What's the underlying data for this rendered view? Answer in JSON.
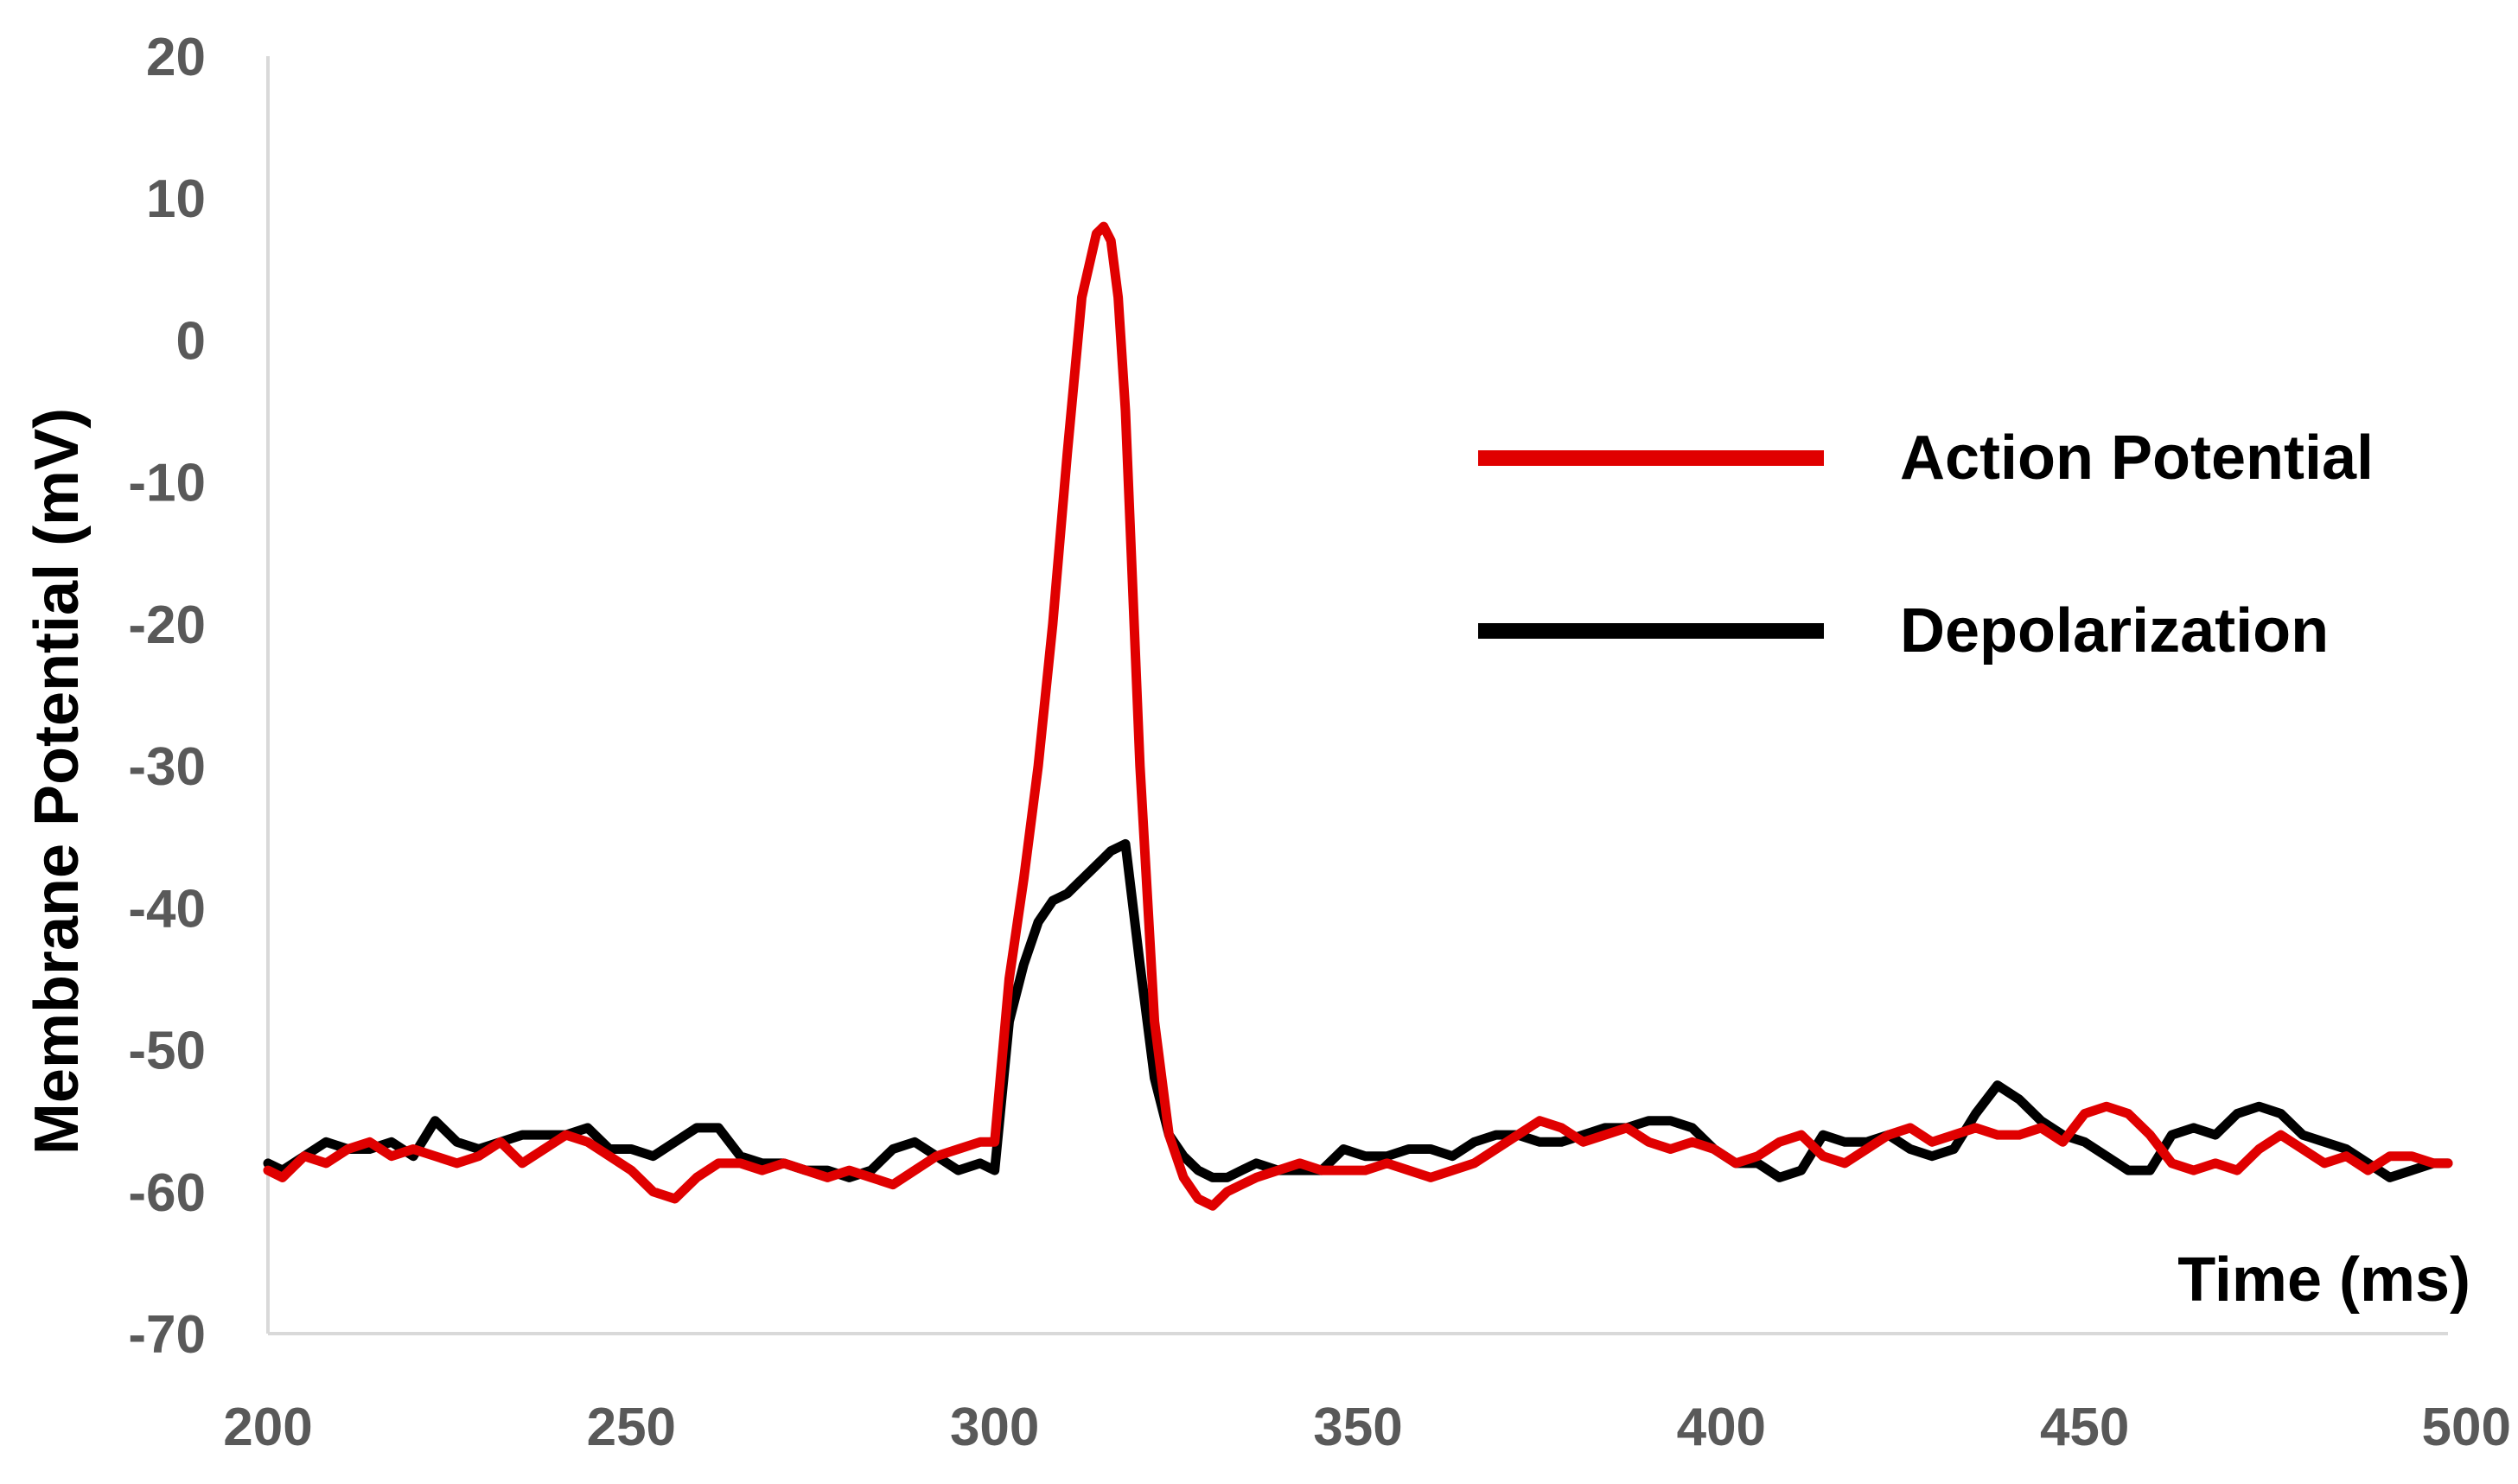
{
  "chart_data": {
    "type": "line",
    "title": "",
    "xlabel": "Time (ms)",
    "ylabel": "Membrane Potential (mV)",
    "xlim": [
      200,
      500
    ],
    "ylim": [
      -70,
      20
    ],
    "xticks": [
      200,
      250,
      300,
      350,
      400,
      450,
      500
    ],
    "yticks": [
      20,
      10,
      0,
      -10,
      -20,
      -30,
      -40,
      -50,
      -60,
      -70
    ],
    "grid": false,
    "legend_position": "right",
    "series": [
      {
        "name": "Action Potential",
        "color": "#e00000",
        "x": [
          200,
          202,
          205,
          208,
          211,
          214,
          217,
          220,
          223,
          226,
          229,
          232,
          235,
          238,
          241,
          244,
          247,
          250,
          253,
          256,
          259,
          262,
          265,
          268,
          271,
          274,
          277,
          280,
          283,
          286,
          289,
          292,
          295,
          298,
          300,
          302,
          304,
          306,
          308,
          310,
          312,
          314,
          315,
          316,
          317,
          318,
          320,
          322,
          324,
          326,
          328,
          330,
          332,
          334,
          336,
          339,
          342,
          345,
          348,
          351,
          354,
          357,
          360,
          363,
          366,
          369,
          372,
          375,
          378,
          381,
          384,
          387,
          390,
          393,
          396,
          399,
          402,
          405,
          408,
          411,
          414,
          417,
          420,
          423,
          426,
          429,
          432,
          435,
          438,
          441,
          444,
          447,
          450,
          453,
          456,
          459,
          462,
          465,
          468,
          471,
          474,
          477,
          480,
          483,
          486,
          489,
          492,
          495,
          498,
          500
        ],
        "y": [
          -58.5,
          -59,
          -57.5,
          -58,
          -57,
          -56.5,
          -57.5,
          -57,
          -57.5,
          -58,
          -57.5,
          -56.5,
          -58,
          -57,
          -56,
          -56.5,
          -57.5,
          -58.5,
          -60,
          -60.5,
          -59,
          -58,
          -58,
          -58.5,
          -58,
          -58.5,
          -59,
          -58.5,
          -59,
          -59.5,
          -58.5,
          -57.5,
          -57,
          -56.5,
          -56.5,
          -45,
          -38,
          -30,
          -20,
          -8,
          3,
          7.5,
          8,
          7,
          3,
          -5,
          -30,
          -48,
          -56,
          -59,
          -60.5,
          -61,
          -60,
          -59.5,
          -59,
          -58.5,
          -58,
          -58.5,
          -58.5,
          -58.5,
          -58,
          -58.5,
          -59,
          -58.5,
          -58,
          -57,
          -56,
          -55,
          -55.5,
          -56.5,
          -56,
          -55.5,
          -56.5,
          -57,
          -56.5,
          -57,
          -58,
          -57.5,
          -56.5,
          -56,
          -57.5,
          -58,
          -57,
          -56,
          -55.5,
          -56.5,
          -56,
          -55.5,
          -56,
          -56,
          -55.5,
          -56.5,
          -54.5,
          -54,
          -54.5,
          -56,
          -58,
          -58.5,
          -58,
          -58.5,
          -57,
          -56,
          -57,
          -58,
          -57.5,
          -58.5,
          -57.5,
          -57.5,
          -58,
          -58
        ]
      },
      {
        "name": "Depolarization",
        "color": "#000000",
        "x": [
          200,
          202,
          205,
          208,
          211,
          214,
          217,
          220,
          223,
          226,
          229,
          232,
          235,
          238,
          241,
          244,
          247,
          250,
          253,
          256,
          259,
          262,
          265,
          268,
          271,
          274,
          277,
          280,
          283,
          286,
          289,
          292,
          295,
          298,
          300,
          302,
          304,
          306,
          308,
          310,
          312,
          314,
          316,
          318,
          320,
          322,
          324,
          326,
          328,
          330,
          332,
          334,
          336,
          339,
          342,
          345,
          348,
          351,
          354,
          357,
          360,
          363,
          366,
          369,
          372,
          375,
          378,
          381,
          384,
          387,
          390,
          393,
          396,
          399,
          402,
          405,
          408,
          411,
          414,
          417,
          420,
          423,
          426,
          429,
          432,
          435,
          438,
          441,
          444,
          447,
          450,
          453,
          456,
          459,
          462,
          465,
          468,
          471,
          474,
          477,
          480,
          483,
          486,
          489,
          492,
          495,
          498,
          500
        ],
        "y": [
          -58,
          -58.5,
          -57.5,
          -56.5,
          -57,
          -57,
          -56.5,
          -57.5,
          -55,
          -56.5,
          -57,
          -56.5,
          -56,
          -56,
          -56,
          -55.5,
          -57,
          -57,
          -57.5,
          -56.5,
          -55.5,
          -55.5,
          -57.5,
          -58,
          -58,
          -58.5,
          -58.5,
          -59,
          -58.5,
          -57,
          -56.5,
          -57.5,
          -58.5,
          -58,
          -58.5,
          -48,
          -44,
          -41,
          -39.5,
          -39,
          -38,
          -37,
          -36,
          -35.5,
          -44,
          -52,
          -56,
          -57.5,
          -58.5,
          -59,
          -59,
          -58.5,
          -58,
          -58.5,
          -58.5,
          -58.5,
          -57,
          -57.5,
          -57.5,
          -57,
          -57,
          -57.5,
          -56.5,
          -56,
          -56,
          -56.5,
          -56.5,
          -56,
          -55.5,
          -55.5,
          -55,
          -55,
          -55.5,
          -57,
          -58,
          -58,
          -59,
          -58.5,
          -56,
          -56.5,
          -56.5,
          -56,
          -57,
          -57.5,
          -57,
          -54.5,
          -52.5,
          -53.5,
          -55,
          -56,
          -56.5,
          -57.5,
          -58.5,
          -58.5,
          -56,
          -55.5,
          -56,
          -54.5,
          -54,
          -54.5,
          -56,
          -56.5,
          -57,
          -58,
          -59,
          -58.5,
          -58,
          -58
        ]
      }
    ]
  }
}
